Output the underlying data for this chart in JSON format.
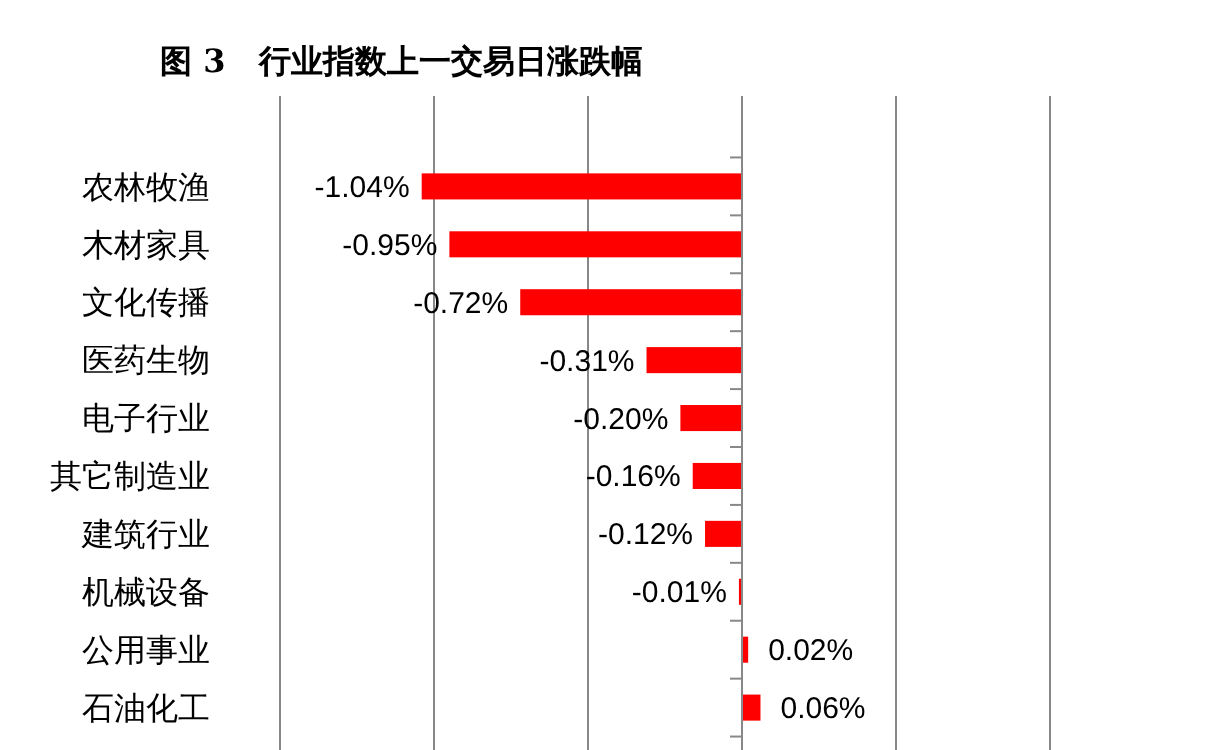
{
  "chart_data": {
    "type": "bar",
    "orientation": "horizontal",
    "title": "图 3   行业指数上一交易日涨跌幅",
    "categories": [
      "农林牧渔",
      "木材家具",
      "文化传播",
      "医药生物",
      "电子行业",
      "其它制造业",
      "建筑行业",
      "机械设备",
      "公用事业",
      "石油化工"
    ],
    "values": [
      -1.04,
      -0.95,
      -0.72,
      -0.31,
      -0.2,
      -0.16,
      -0.12,
      -0.01,
      0.02,
      0.06
    ],
    "value_labels": [
      "-1.04%",
      "-0.95%",
      "-0.72%",
      "-0.31%",
      "-0.20%",
      "-0.16%",
      "-0.12%",
      "-0.01%",
      "0.02%",
      "0.06%"
    ],
    "color": "#ff0000",
    "xlim": [
      -1.5,
      1.0
    ],
    "xticks": [
      {
        "value": -1.5,
        "label": null
      },
      {
        "value": -1.0,
        "label": null
      },
      {
        "value": -0.5,
        "label": null
      },
      {
        "value": 0,
        "label": null
      },
      {
        "value": 0.5,
        "label": null
      },
      {
        "value": 1.0,
        "label": null
      }
    ],
    "grid": "x",
    "tick_labels": "y"
  }
}
